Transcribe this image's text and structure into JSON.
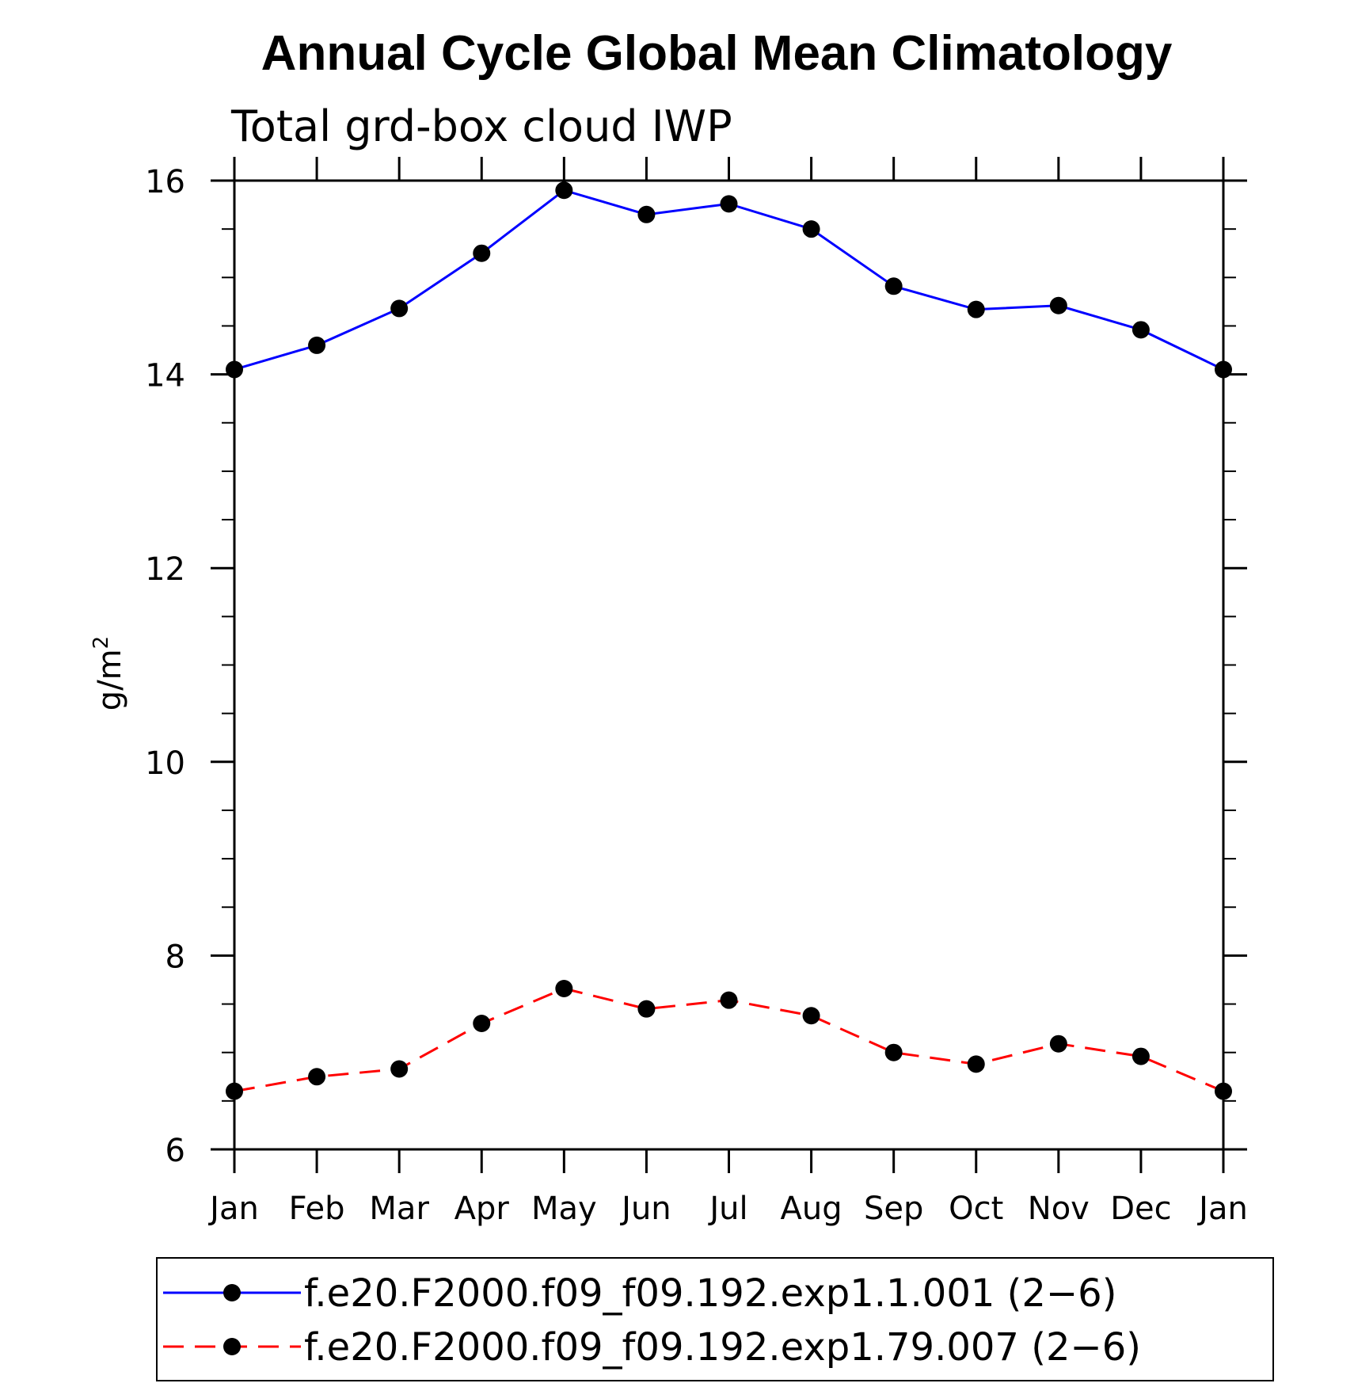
{
  "chart_data": {
    "type": "line",
    "title": "Annual Cycle Global Mean Climatology",
    "subtitle": "Total grd-box cloud IWP",
    "xlabel": "",
    "ylabel": "g/m",
    "ylabel_superscript": "2",
    "categories": [
      "Jan",
      "Feb",
      "Mar",
      "Apr",
      "May",
      "Jun",
      "Jul",
      "Aug",
      "Sep",
      "Oct",
      "Nov",
      "Dec",
      "Jan"
    ],
    "ylim": [
      6,
      16
    ],
    "yticks": [
      6,
      8,
      10,
      12,
      14,
      16
    ],
    "y_minor_step": 0.5,
    "grid": false,
    "legend_position": "bottom",
    "series": [
      {
        "name": "f.e20.F2000.f09_f09.192.exp1.1.001 (2−6)",
        "color": "#0000ff",
        "dash": "solid",
        "marker": "circle",
        "values": [
          14.05,
          14.3,
          14.68,
          15.25,
          15.9,
          15.65,
          15.76,
          15.5,
          14.91,
          14.67,
          14.71,
          14.46,
          14.05
        ]
      },
      {
        "name": "f.e20.F2000.f09_f09.192.exp1.79.007 (2−6)",
        "color": "#ff0000",
        "dash": "dashed",
        "marker": "circle",
        "values": [
          6.6,
          6.75,
          6.83,
          7.3,
          7.66,
          7.45,
          7.54,
          7.38,
          7.0,
          6.88,
          7.09,
          6.96,
          6.6
        ]
      }
    ]
  }
}
